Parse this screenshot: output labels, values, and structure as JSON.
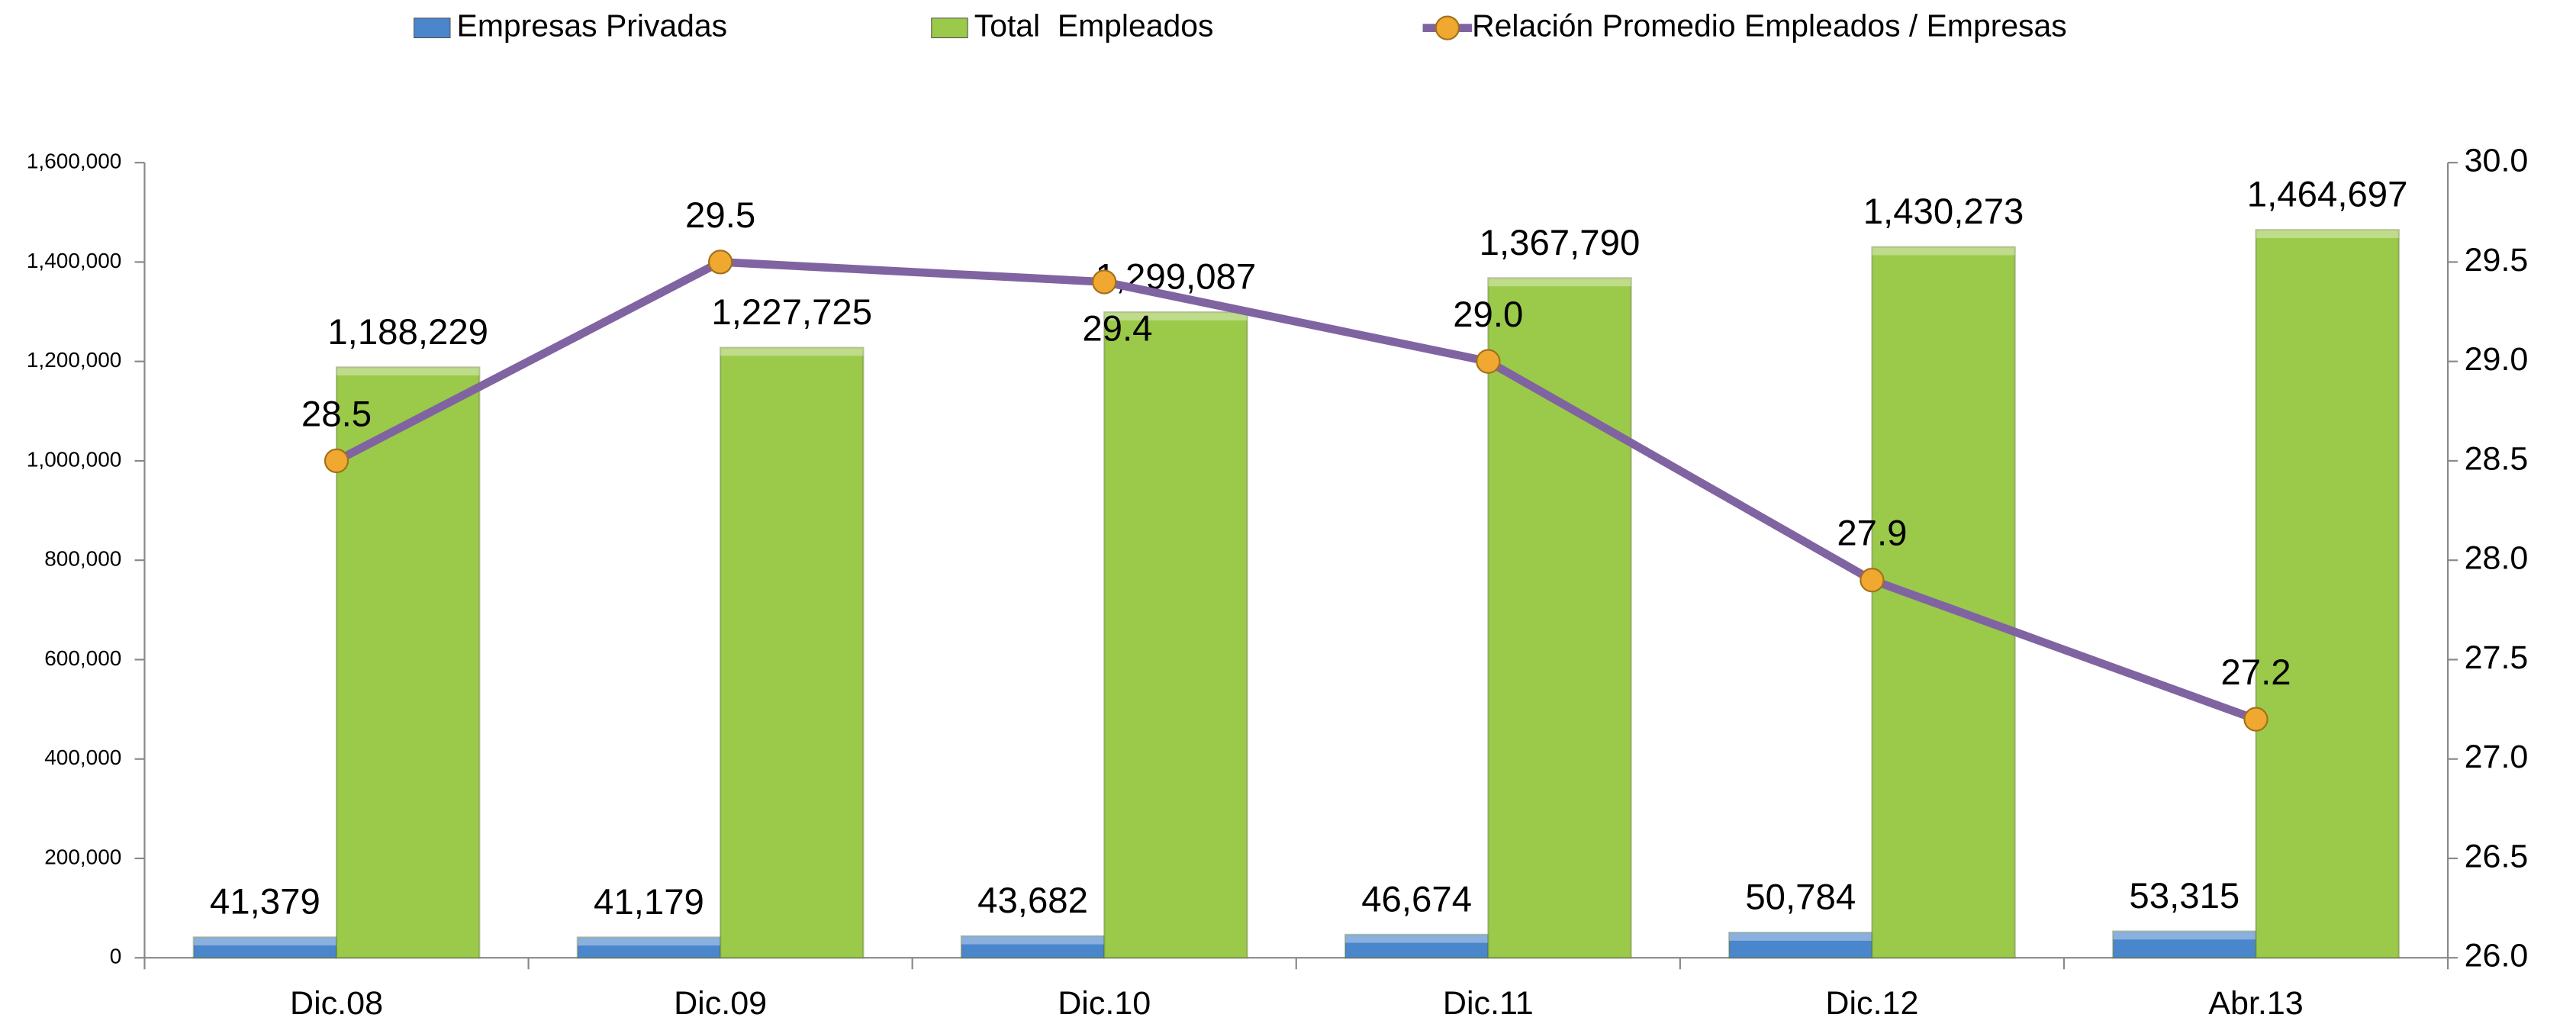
{
  "chart_data": {
    "type": "bar",
    "categories": [
      "Dic.08",
      "Dic.09",
      "Dic.10",
      "Dic.11",
      "Dic.12",
      "Abr.13"
    ],
    "series": [
      {
        "name": "Empresas Privadas",
        "color": "#4a86cc",
        "type": "bar",
        "values": [
          41379,
          41179,
          43682,
          46674,
          50784,
          53315
        ],
        "value_labels": [
          "41,379",
          "41,179",
          "43,682",
          "46,674",
          "50,784",
          "53,315"
        ]
      },
      {
        "name": "Total  Empleados",
        "color": "#9bc94a",
        "type": "bar",
        "values": [
          1188229,
          1227725,
          1299087,
          1367790,
          1430273,
          1464697
        ],
        "value_labels": [
          "1,188,229",
          "1,227,725",
          "1,299,087",
          "1,367,790",
          "1,430,273",
          "1,464,697"
        ]
      },
      {
        "name": "Relación Promedio Empleados / Empresas",
        "color": "#8064a2",
        "marker_color": "#f0a830",
        "type": "line",
        "axis": "y2",
        "values": [
          28.5,
          29.5,
          29.4,
          29.0,
          27.9,
          27.2
        ],
        "value_labels": [
          "28.5",
          "29.5",
          "29.4",
          "29.0",
          "27.9",
          "27.2"
        ]
      }
    ],
    "ylim": [
      0,
      1600000
    ],
    "yticks": [
      0,
      {
        "value": 200000,
        "label": "200,000"
      },
      {
        "value": 400000,
        "label": "400,000"
      },
      {
        "value": 600000,
        "label": "600,000"
      },
      {
        "value": 800000,
        "label": "800,000"
      },
      {
        "value": 1000000,
        "label": "1,000,000"
      },
      {
        "value": 1200000,
        "label": "1,200,000"
      },
      {
        "value": 1400000,
        "label": "1,400,000"
      },
      {
        "value": 1600000,
        "label": "1,600,000"
      }
    ],
    "y2lim": [
      26,
      30
    ],
    "y2ticks": [
      {
        "value": 26,
        "label": "26.0"
      },
      26.5,
      {
        "value": 27,
        "label": "27.0"
      },
      27.5,
      {
        "value": 28,
        "label": "28.0"
      },
      28.5,
      {
        "value": 29,
        "label": "29.0"
      },
      29.5,
      {
        "value": 30,
        "label": "30.0"
      }
    ],
    "legend": "top"
  }
}
